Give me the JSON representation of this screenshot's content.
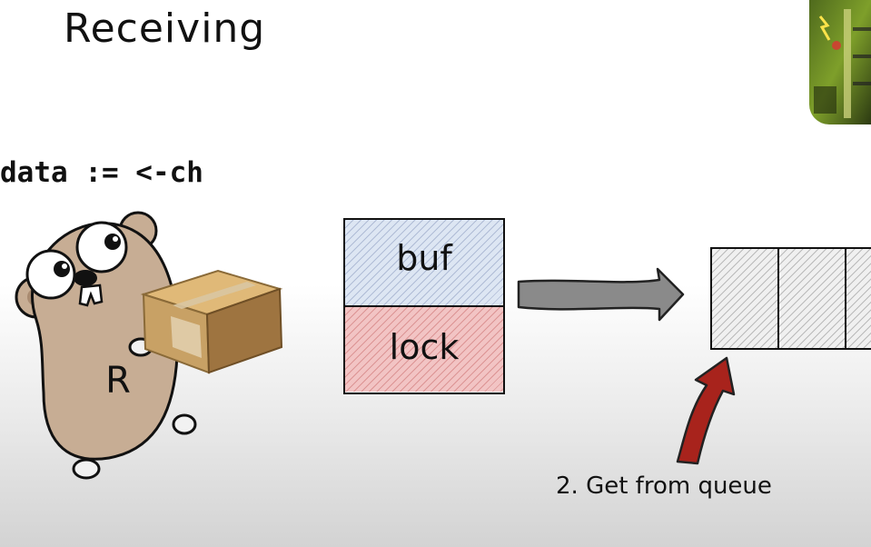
{
  "slide": {
    "title": "Receiving",
    "code": "data := <-ch"
  },
  "gopher": {
    "label": "R"
  },
  "hchan": {
    "buf_label": "buf",
    "lock_label": "lock"
  },
  "queue": {
    "slots": 3
  },
  "step": {
    "caption": "2. Get from queue"
  },
  "colors": {
    "buf_fill": "#dde6f3",
    "lock_fill": "#f2c4c4",
    "queue_fill": "#f0f0f0",
    "arrow_gray": "#8a8a8a",
    "arrow_red": "#a8231c",
    "gopher_fur": "#c7ad94",
    "box_cardboard": "#c8a165"
  }
}
